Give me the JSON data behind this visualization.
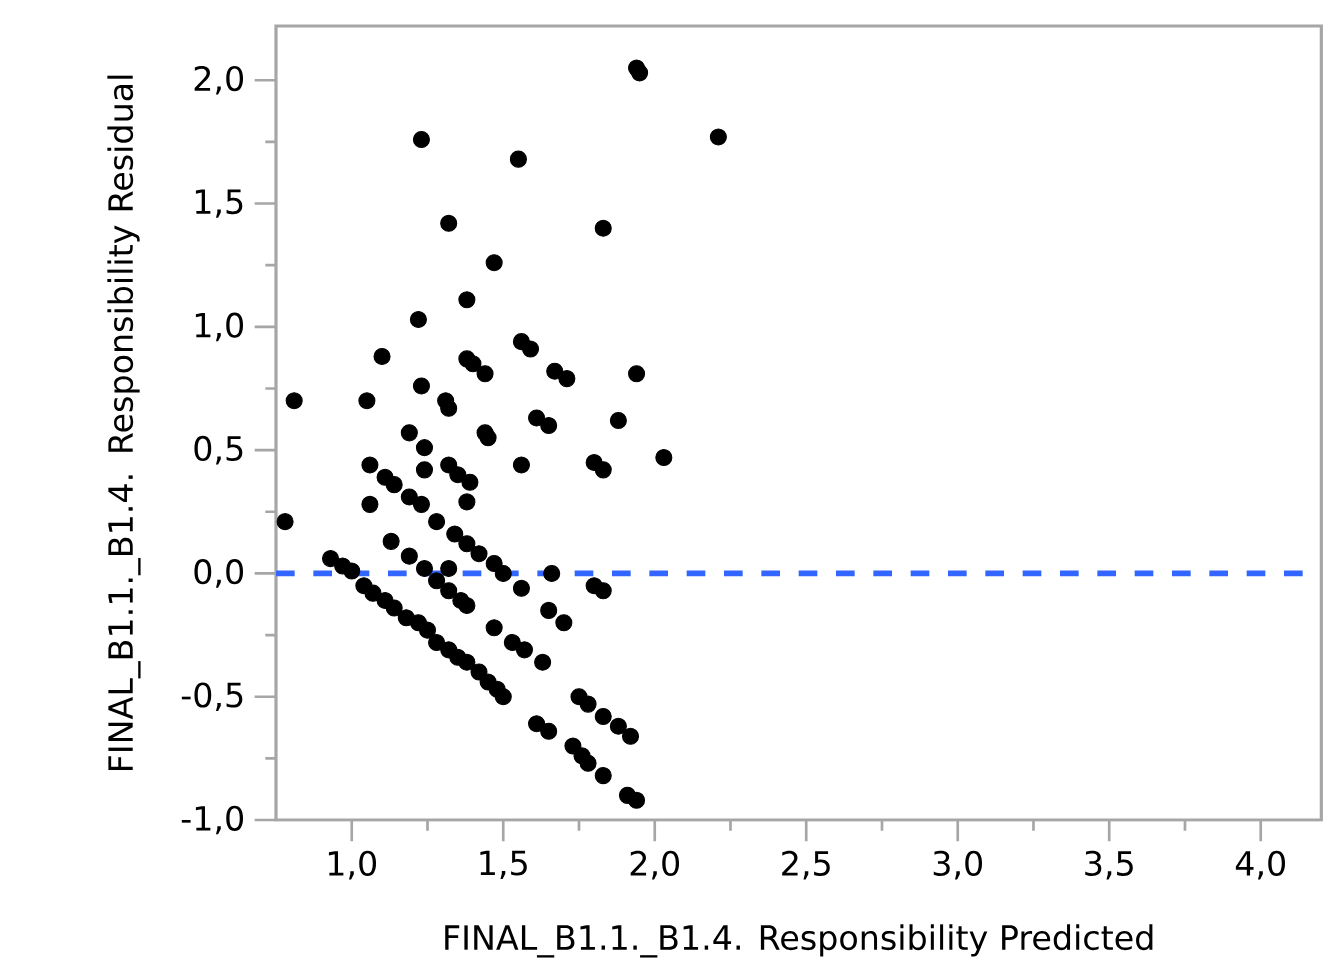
{
  "chart_data": {
    "type": "scatter",
    "xlabel": "FINAL_B1.1._B1.4. Responsibility Predicted",
    "ylabel": "FINAL_B1.1._B1.4. Responsibility Residual",
    "marker": "circle",
    "color": "#000000",
    "x": [
      1.94,
      1.95,
      1.23,
      1.55,
      2.21,
      1.32,
      1.83,
      1.47,
      1.38,
      1.22,
      1.1,
      1.38,
      1.4,
      1.44,
      1.56,
      1.59,
      1.67,
      1.71,
      1.94,
      1.23,
      0.81,
      1.05,
      1.31,
      1.32,
      1.61,
      1.65,
      1.88,
      1.19,
      1.44,
      0.78,
      0.93,
      0.97,
      1.0,
      1.04,
      1.07,
      1.11,
      1.14,
      1.18,
      1.22,
      1.25,
      1.28,
      1.32,
      1.35,
      1.38,
      1.42,
      1.45,
      1.48,
      1.5,
      1.13,
      1.19,
      1.24,
      1.28,
      1.32,
      1.36,
      1.38,
      1.06,
      1.11,
      1.14,
      1.19,
      1.23,
      1.28,
      1.34,
      1.38,
      1.42,
      1.47,
      1.5,
      1.56,
      1.06,
      1.32,
      1.38,
      1.24,
      1.24,
      1.32,
      1.35,
      1.39,
      1.45,
      1.56,
      1.8,
      1.83,
      2.03,
      1.66,
      1.8,
      1.83,
      1.65,
      1.7,
      1.47,
      1.53,
      1.57,
      1.63,
      1.75,
      1.78,
      1.83,
      1.88,
      1.92,
      1.61,
      1.65,
      1.73,
      1.76,
      1.78,
      1.83,
      1.91,
      1.94
    ],
    "values": [
      2.05,
      2.03,
      1.76,
      1.68,
      1.77,
      1.42,
      1.4,
      1.26,
      1.11,
      1.03,
      0.88,
      0.87,
      0.85,
      0.81,
      0.94,
      0.91,
      0.82,
      0.79,
      0.81,
      0.76,
      0.7,
      0.7,
      0.7,
      0.67,
      0.63,
      0.6,
      0.62,
      0.57,
      0.57,
      0.21,
      0.06,
      0.03,
      0.01,
      -0.05,
      -0.08,
      -0.11,
      -0.14,
      -0.18,
      -0.2,
      -0.23,
      -0.28,
      -0.31,
      -0.34,
      -0.36,
      -0.4,
      -0.44,
      -0.47,
      -0.5,
      0.13,
      0.07,
      0.02,
      -0.03,
      -0.07,
      -0.11,
      -0.13,
      0.44,
      0.39,
      0.36,
      0.31,
      0.28,
      0.21,
      0.16,
      0.12,
      0.08,
      0.04,
      0.0,
      -0.06,
      0.28,
      0.02,
      0.29,
      0.51,
      0.42,
      0.44,
      0.4,
      0.37,
      0.55,
      0.44,
      0.45,
      0.42,
      0.47,
      0.0,
      -0.05,
      -0.07,
      -0.15,
      -0.2,
      -0.22,
      -0.28,
      -0.31,
      -0.36,
      -0.5,
      -0.53,
      -0.58,
      -0.62,
      -0.66,
      -0.61,
      -0.64,
      -0.7,
      -0.74,
      -0.77,
      -0.82,
      -0.9,
      -0.92
    ],
    "xlim": [
      0.75,
      4.2
    ],
    "ylim": [
      -1.0,
      2.22
    ],
    "xticks": [
      {
        "value": 1.0,
        "label": "1,0"
      },
      {
        "value": 1.25,
        "label": null
      },
      {
        "value": 1.5,
        "label": "1,5"
      },
      {
        "value": 1.75,
        "label": null
      },
      {
        "value": 2.0,
        "label": "2,0"
      },
      {
        "value": 2.25,
        "label": null
      },
      {
        "value": 2.5,
        "label": "2,5"
      },
      {
        "value": 2.75,
        "label": null
      },
      {
        "value": 3.0,
        "label": "3,0"
      },
      {
        "value": 3.25,
        "label": null
      },
      {
        "value": 3.5,
        "label": "3,5"
      },
      {
        "value": 3.75,
        "label": null
      },
      {
        "value": 4.0,
        "label": "4,0"
      }
    ],
    "yticks": [
      {
        "value": -1.0,
        "label": "-1,0"
      },
      {
        "value": -0.75,
        "label": null
      },
      {
        "value": -0.5,
        "label": "-0,5"
      },
      {
        "value": -0.25,
        "label": null
      },
      {
        "value": 0.0,
        "label": "0,0"
      },
      {
        "value": 0.25,
        "label": null
      },
      {
        "value": 0.5,
        "label": "0,5"
      },
      {
        "value": 0.75,
        "label": null
      },
      {
        "value": 1.0,
        "label": "1,0"
      },
      {
        "value": 1.25,
        "label": null
      },
      {
        "value": 1.5,
        "label": "1,5"
      },
      {
        "value": 1.75,
        "label": null
      },
      {
        "value": 2.0,
        "label": "2,0"
      }
    ],
    "ref_lines": [
      {
        "axis": "y",
        "value": 0,
        "color": "#3366ff",
        "line_style": "dashed"
      }
    ]
  }
}
